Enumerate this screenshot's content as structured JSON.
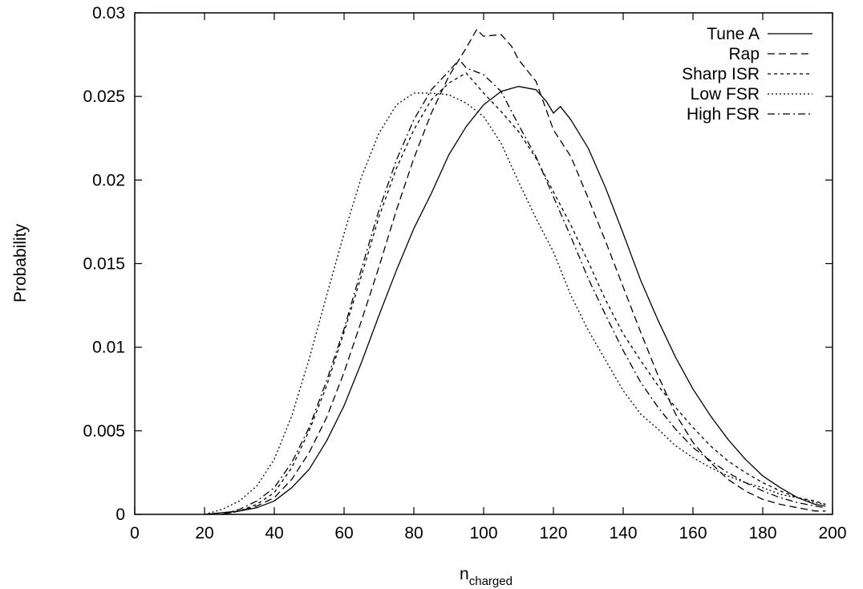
{
  "chart_data": {
    "type": "line",
    "title": "",
    "xlabel_main": "n",
    "xlabel_sub": "charged",
    "ylabel": "Probability",
    "xlim": [
      0,
      200
    ],
    "ylim": [
      0,
      0.03
    ],
    "xticks": [
      0,
      20,
      40,
      60,
      80,
      100,
      120,
      140,
      160,
      180,
      200
    ],
    "yticks": [
      0,
      0.005,
      0.01,
      0.015,
      0.02,
      0.025,
      0.03
    ],
    "xtick_labels": [
      "0",
      "20",
      "40",
      "60",
      "80",
      "100",
      "120",
      "140",
      "160",
      "180",
      "200"
    ],
    "ytick_labels": [
      "0",
      "0.005",
      "0.01",
      "0.015",
      "0.02",
      "0.025",
      "0.03"
    ],
    "grid": false,
    "legend_position": "top-right",
    "series": [
      {
        "name": "Tune A",
        "dash": "",
        "x": [
          20,
          25,
          30,
          35,
          40,
          45,
          50,
          55,
          60,
          65,
          70,
          75,
          80,
          85,
          90,
          95,
          100,
          105,
          110,
          115,
          118,
          120,
          122,
          125,
          130,
          135,
          140,
          145,
          150,
          155,
          160,
          165,
          170,
          175,
          180,
          185,
          190,
          195,
          198
        ],
        "y": [
          0,
          0.0001,
          0.0002,
          0.0004,
          0.0008,
          0.0016,
          0.0027,
          0.0044,
          0.0065,
          0.0091,
          0.0119,
          0.0146,
          0.0171,
          0.0192,
          0.0215,
          0.0232,
          0.0245,
          0.0253,
          0.0256,
          0.0254,
          0.0247,
          0.024,
          0.0244,
          0.0236,
          0.0219,
          0.0195,
          0.0168,
          0.014,
          0.0116,
          0.0094,
          0.0075,
          0.0059,
          0.0045,
          0.0033,
          0.0023,
          0.0016,
          0.001,
          0.0006,
          0.0005
        ]
      },
      {
        "name": "Rap",
        "dash": "9,5",
        "x": [
          25,
          30,
          35,
          40,
          45,
          50,
          55,
          60,
          65,
          70,
          75,
          80,
          85,
          90,
          95,
          98,
          100,
          105,
          108,
          110,
          115,
          120,
          125,
          130,
          135,
          140,
          145,
          150,
          155,
          160,
          165,
          170,
          175,
          180,
          185,
          190,
          195,
          198
        ],
        "y": [
          0,
          0.0002,
          0.0005,
          0.001,
          0.0021,
          0.0037,
          0.0058,
          0.0085,
          0.0116,
          0.0148,
          0.0182,
          0.0213,
          0.024,
          0.0262,
          0.0279,
          0.029,
          0.0286,
          0.0287,
          0.028,
          0.0272,
          0.0259,
          0.023,
          0.0214,
          0.0189,
          0.0163,
          0.0136,
          0.0109,
          0.0083,
          0.006,
          0.0043,
          0.0031,
          0.0021,
          0.0014,
          0.0009,
          0.0006,
          0.0004,
          0.0002,
          0.0002
        ]
      },
      {
        "name": "Sharp ISR",
        "dash": "4,4",
        "x": [
          25,
          30,
          35,
          40,
          45,
          50,
          55,
          60,
          65,
          70,
          75,
          80,
          85,
          90,
          95,
          100,
          105,
          110,
          115,
          120,
          125,
          130,
          135,
          140,
          145,
          150,
          155,
          160,
          165,
          170,
          175,
          180,
          185,
          190,
          195,
          198
        ],
        "y": [
          0,
          0.0002,
          0.0006,
          0.0013,
          0.0028,
          0.005,
          0.0077,
          0.0109,
          0.0143,
          0.0178,
          0.0207,
          0.023,
          0.0248,
          0.0258,
          0.0264,
          0.0252,
          0.0241,
          0.0229,
          0.0213,
          0.0193,
          0.0173,
          0.0151,
          0.0128,
          0.0108,
          0.0092,
          0.0077,
          0.0064,
          0.0052,
          0.0041,
          0.0032,
          0.0025,
          0.0019,
          0.0014,
          0.001,
          0.0008,
          0.0006
        ]
      },
      {
        "name": "Low FSR",
        "dash": "2,3",
        "x": [
          20,
          25,
          30,
          35,
          40,
          45,
          50,
          55,
          60,
          65,
          70,
          75,
          80,
          85,
          90,
          95,
          100,
          105,
          110,
          115,
          120,
          125,
          130,
          135,
          140,
          145,
          150,
          155,
          160,
          165,
          170,
          175,
          180,
          185,
          190,
          195,
          198
        ],
        "y": [
          0,
          0.0003,
          0.0008,
          0.0017,
          0.0033,
          0.0059,
          0.0093,
          0.0131,
          0.0168,
          0.0202,
          0.0228,
          0.0245,
          0.0252,
          0.0252,
          0.0251,
          0.0246,
          0.0238,
          0.0222,
          0.0199,
          0.0177,
          0.0157,
          0.0131,
          0.011,
          0.0092,
          0.0074,
          0.006,
          0.0051,
          0.0041,
          0.0034,
          0.0028,
          0.0023,
          0.0019,
          0.0016,
          0.0012,
          0.001,
          0.0007,
          0.0006
        ]
      },
      {
        "name": "High FSR",
        "dash": "9,4,2,4",
        "x": [
          25,
          30,
          35,
          40,
          45,
          50,
          55,
          60,
          65,
          70,
          75,
          80,
          85,
          90,
          93,
          95,
          100,
          105,
          110,
          115,
          120,
          125,
          130,
          135,
          140,
          145,
          150,
          155,
          160,
          165,
          170,
          175,
          180,
          185,
          190,
          195,
          198
        ],
        "y": [
          0,
          0.0003,
          0.0008,
          0.0016,
          0.0031,
          0.0052,
          0.008,
          0.0111,
          0.0147,
          0.0182,
          0.0212,
          0.0236,
          0.0254,
          0.0265,
          0.0272,
          0.0267,
          0.0263,
          0.0253,
          0.0233,
          0.0214,
          0.019,
          0.0166,
          0.0141,
          0.0119,
          0.0098,
          0.0079,
          0.0064,
          0.0051,
          0.004,
          0.0032,
          0.0025,
          0.0019,
          0.0014,
          0.001,
          0.0007,
          0.0005,
          0.0004
        ]
      }
    ]
  }
}
